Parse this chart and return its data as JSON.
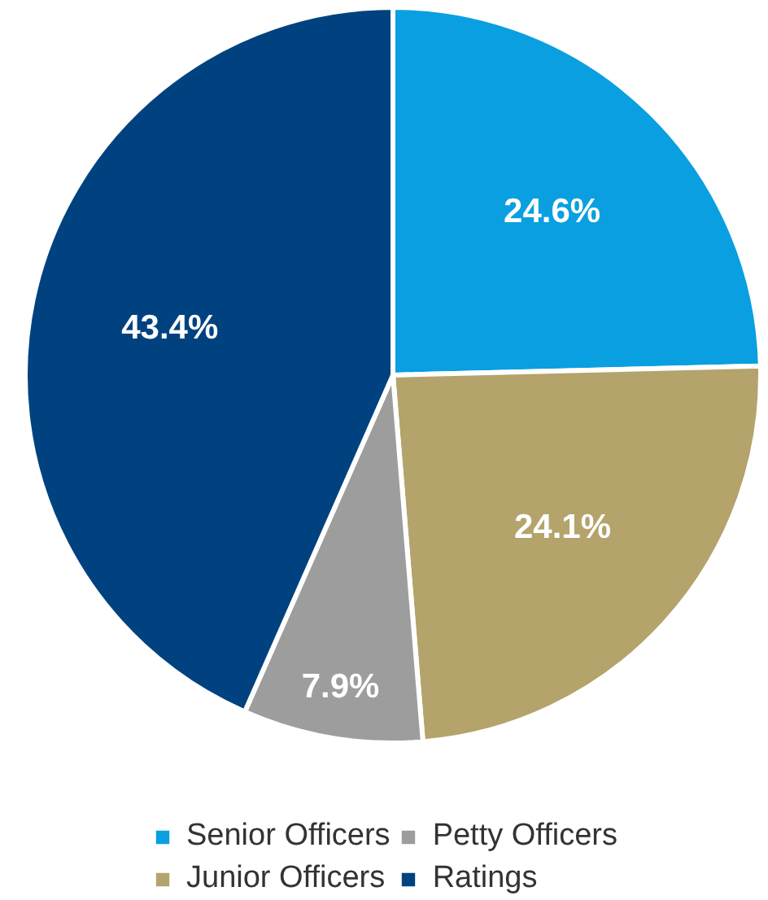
{
  "chart_data": {
    "type": "pie",
    "categories": [
      "Senior Officers",
      "Junior Officers",
      "Petty Officers",
      "Ratings"
    ],
    "values": [
      24.6,
      24.1,
      7.9,
      43.4
    ],
    "colors": [
      "#0a9fe0",
      "#b4a36b",
      "#9d9d9d",
      "#00427f"
    ],
    "value_labels": [
      "24.6%",
      "24.1%",
      "7.9%",
      "43.4%"
    ],
    "legend": "bottom"
  }
}
